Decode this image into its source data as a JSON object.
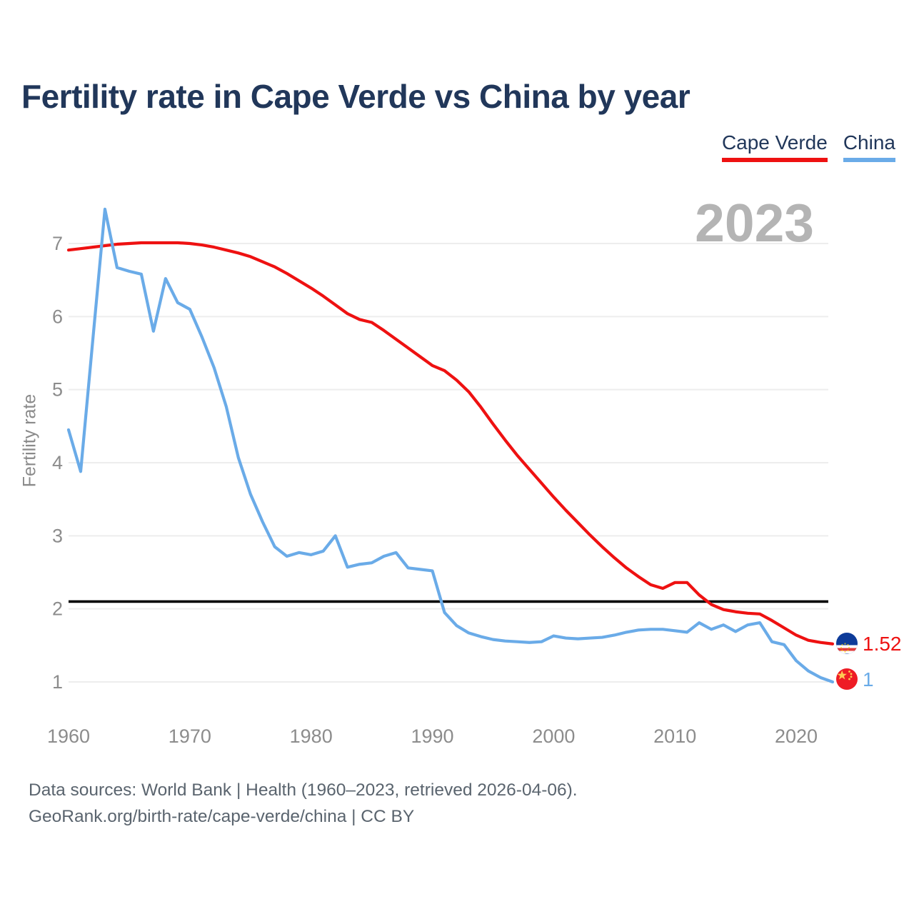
{
  "header": {
    "title": "Fertility rate in Cape Verde vs China by year"
  },
  "legend": {
    "items": [
      {
        "label": "Cape Verde",
        "color": "#ee1111"
      },
      {
        "label": "China",
        "color": "#6aabe8"
      }
    ]
  },
  "watermark": {
    "text": "2023"
  },
  "y_axis": {
    "label": "Fertility rate",
    "ticks": [
      7,
      6,
      5,
      4,
      3,
      2,
      1
    ]
  },
  "x_axis": {
    "ticks": [
      1960,
      1970,
      1980,
      1990,
      2000,
      2010,
      2020
    ]
  },
  "replacement_line": {
    "value": 2.1,
    "color": "#000000"
  },
  "series_end_labels": [
    {
      "series": "Cape Verde",
      "value": "1.52",
      "color": "#ee1111",
      "flag": "cape-verde-flag"
    },
    {
      "series": "China",
      "value": "1",
      "color": "#6aabe8",
      "flag": "china-flag"
    }
  ],
  "source": {
    "line1": "Data sources: World Bank | Health (1960–2023, retrieved 2026-04-06).",
    "line2": "GeoRank.org/birth-rate/cape-verde/china | CC BY"
  },
  "chart_data": {
    "type": "line",
    "title": "Fertility rate in Cape Verde vs China by year",
    "xlabel": "",
    "ylabel": "Fertility rate",
    "xlim": [
      1960,
      2023
    ],
    "ylim": [
      0.5,
      7.6
    ],
    "grid": "horizontal",
    "legend_position": "top-right",
    "annotations": {
      "replacement_level_line": 2.1,
      "year_watermark": "2023"
    },
    "x": [
      1960,
      1961,
      1962,
      1963,
      1964,
      1965,
      1966,
      1967,
      1968,
      1969,
      1970,
      1971,
      1972,
      1973,
      1974,
      1975,
      1976,
      1977,
      1978,
      1979,
      1980,
      1981,
      1982,
      1983,
      1984,
      1985,
      1986,
      1987,
      1988,
      1989,
      1990,
      1991,
      1992,
      1993,
      1994,
      1995,
      1996,
      1997,
      1998,
      1999,
      2000,
      2001,
      2002,
      2003,
      2004,
      2005,
      2006,
      2007,
      2008,
      2009,
      2010,
      2011,
      2012,
      2013,
      2014,
      2015,
      2016,
      2017,
      2018,
      2019,
      2020,
      2021,
      2022,
      2023
    ],
    "series": [
      {
        "name": "Cape Verde",
        "color": "#ee1111",
        "end_value": 1.52,
        "values": [
          6.91,
          6.93,
          6.95,
          6.97,
          6.99,
          7.0,
          7.01,
          7.01,
          7.01,
          7.01,
          7.0,
          6.98,
          6.95,
          6.91,
          6.87,
          6.82,
          6.75,
          6.68,
          6.59,
          6.49,
          6.39,
          6.28,
          6.16,
          6.04,
          5.96,
          5.92,
          5.81,
          5.69,
          5.57,
          5.45,
          5.33,
          5.26,
          5.13,
          4.97,
          4.76,
          4.53,
          4.31,
          4.1,
          3.91,
          3.72,
          3.53,
          3.35,
          3.18,
          3.01,
          2.85,
          2.7,
          2.56,
          2.44,
          2.33,
          2.28,
          2.36,
          2.36,
          2.19,
          2.06,
          1.99,
          1.96,
          1.94,
          1.93,
          1.84,
          1.74,
          1.64,
          1.57,
          1.54,
          1.52
        ]
      },
      {
        "name": "China",
        "color": "#6aabe8",
        "end_value": 1.0,
        "values": [
          4.45,
          3.88,
          5.68,
          7.47,
          6.67,
          6.62,
          6.58,
          5.8,
          6.52,
          6.19,
          6.1,
          5.72,
          5.3,
          4.77,
          4.07,
          3.57,
          3.19,
          2.85,
          2.72,
          2.77,
          2.74,
          2.79,
          3.0,
          2.57,
          2.61,
          2.63,
          2.72,
          2.77,
          2.56,
          2.54,
          2.52,
          1.95,
          1.77,
          1.67,
          1.62,
          1.58,
          1.56,
          1.55,
          1.54,
          1.55,
          1.63,
          1.6,
          1.59,
          1.6,
          1.61,
          1.64,
          1.68,
          1.71,
          1.72,
          1.72,
          1.7,
          1.68,
          1.81,
          1.72,
          1.78,
          1.69,
          1.78,
          1.81,
          1.55,
          1.51,
          1.29,
          1.15,
          1.06,
          1.0
        ]
      }
    ]
  }
}
